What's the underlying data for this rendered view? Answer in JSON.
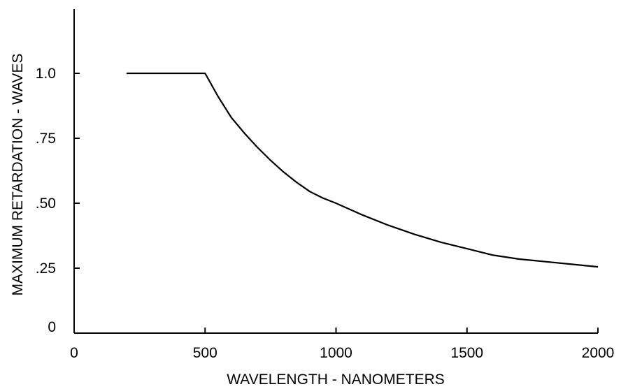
{
  "chart_data": {
    "type": "line",
    "xlabel": "WAVELENGTH - NANOMETERS",
    "ylabel": "MAXIMUM RETARDATION - WAVES",
    "xlim": [
      0,
      2000
    ],
    "ylim": [
      0,
      1.0
    ],
    "x_ticks": [
      {
        "value": 0,
        "label": "0"
      },
      {
        "value": 500,
        "label": "500"
      },
      {
        "value": 1000,
        "label": "1000"
      },
      {
        "value": 1500,
        "label": "1500"
      },
      {
        "value": 2000,
        "label": "2000"
      }
    ],
    "y_ticks": [
      {
        "value": 0,
        "label": "0"
      },
      {
        "value": 0.25,
        "label": ".25"
      },
      {
        "value": 0.5,
        "label": ".50"
      },
      {
        "value": 0.75,
        "label": ".75"
      },
      {
        "value": 1.0,
        "label": "1.0"
      }
    ],
    "grid": false,
    "line_color": "#000000",
    "series": [
      {
        "x": [
          200,
          300,
          400,
          500,
          550,
          600,
          650,
          700,
          750,
          800,
          850,
          900,
          950,
          1000,
          1100,
          1200,
          1300,
          1400,
          1500,
          1600,
          1700,
          1800,
          1900,
          2000
        ],
        "values": [
          1.0,
          1.0,
          1.0,
          1.0,
          0.91,
          0.83,
          0.77,
          0.715,
          0.665,
          0.62,
          0.58,
          0.545,
          0.52,
          0.5,
          0.455,
          0.415,
          0.38,
          0.35,
          0.325,
          0.3,
          0.285,
          0.275,
          0.265,
          0.255
        ]
      }
    ]
  }
}
